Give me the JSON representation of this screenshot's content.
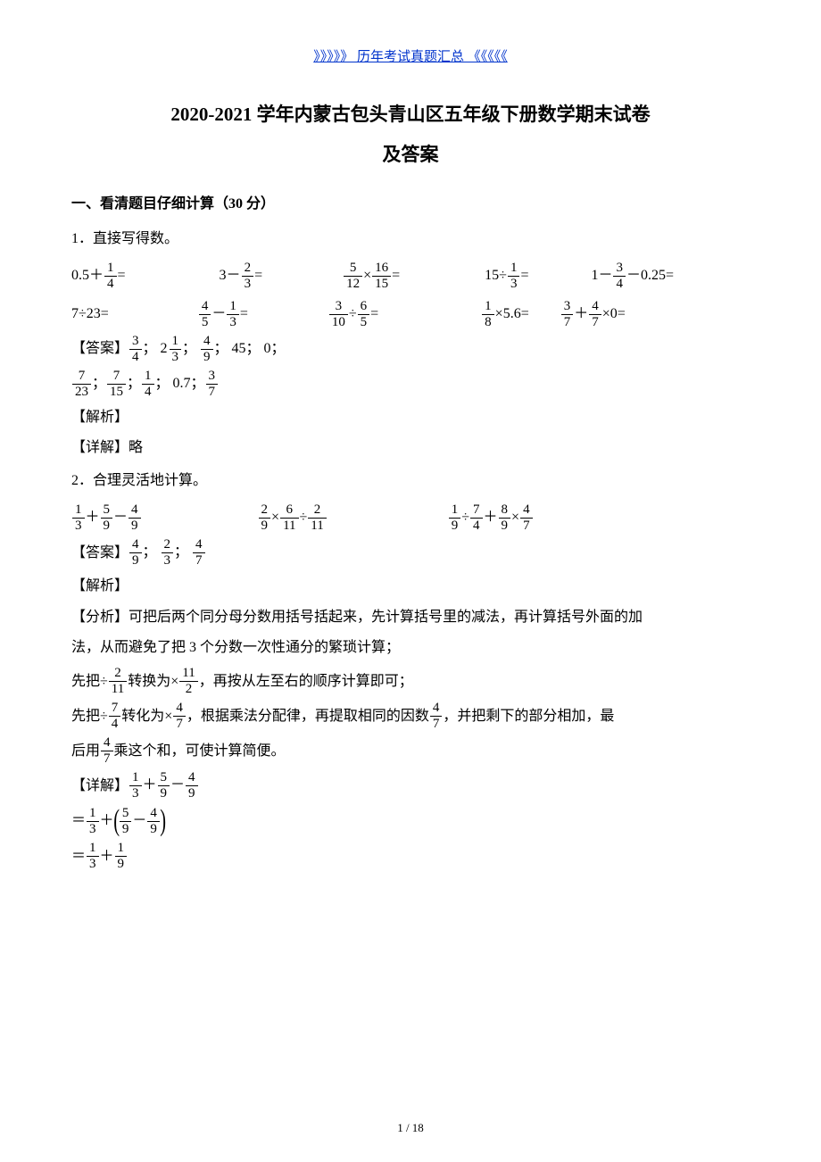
{
  "colors": {
    "link": "#0033cc",
    "text": "#000000",
    "background": "#ffffff"
  },
  "header_link": "》》》》》 历年考试真题汇总 《《《《《",
  "title_line1": "2020-2021 学年内蒙古包头青山区五年级下册数学期末试卷",
  "title_line2": "及答案",
  "section1": "一、看清题目仔细计算（30 分）",
  "q1_label": "1．直接写得数。",
  "q1_row1": {
    "gaps": [
      "0px",
      "105px",
      "90px",
      "95px",
      "70px"
    ],
    "exprs": [
      [
        {
          "t": "txt",
          "v": "0.5＋"
        },
        {
          "t": "frac",
          "n": "1",
          "d": "4"
        },
        {
          "t": "txt",
          "v": "="
        }
      ],
      [
        {
          "t": "txt",
          "v": "3－"
        },
        {
          "t": "frac",
          "n": "2",
          "d": "3"
        },
        {
          "t": "txt",
          "v": "="
        }
      ],
      [
        {
          "t": "frac",
          "n": "5",
          "d": "12"
        },
        {
          "t": "txt",
          "v": "×"
        },
        {
          "t": "frac",
          "n": "16",
          "d": "15"
        },
        {
          "t": "txt",
          "v": "="
        }
      ],
      [
        {
          "t": "txt",
          "v": "15÷"
        },
        {
          "t": "frac",
          "n": "1",
          "d": "3"
        },
        {
          "t": "txt",
          "v": "="
        }
      ],
      [
        {
          "t": "txt",
          "v": "1－"
        },
        {
          "t": "frac",
          "n": "3",
          "d": "4"
        },
        {
          "t": "txt",
          "v": "－0.25="
        }
      ]
    ]
  },
  "q1_row2": {
    "gaps": [
      "0px",
      "100px",
      "90px",
      "115px",
      "35px"
    ],
    "exprs": [
      [
        {
          "t": "txt",
          "v": "7÷23="
        }
      ],
      [
        {
          "t": "frac",
          "n": "4",
          "d": "5"
        },
        {
          "t": "txt",
          "v": "－"
        },
        {
          "t": "frac",
          "n": "1",
          "d": "3"
        },
        {
          "t": "txt",
          "v": "="
        }
      ],
      [
        {
          "t": "frac",
          "n": "3",
          "d": "10"
        },
        {
          "t": "txt",
          "v": "÷"
        },
        {
          "t": "frac",
          "n": "6",
          "d": "5"
        },
        {
          "t": "txt",
          "v": "="
        }
      ],
      [
        {
          "t": "frac",
          "n": "1",
          "d": "8"
        },
        {
          "t": "txt",
          "v": "×5.6="
        }
      ],
      [
        {
          "t": "frac",
          "n": "3",
          "d": "7"
        },
        {
          "t": "txt",
          "v": "＋"
        },
        {
          "t": "frac",
          "n": "4",
          "d": "7"
        },
        {
          "t": "txt",
          "v": "×0="
        }
      ]
    ]
  },
  "q1_ans_label": "【答案】",
  "q1_ans_line1": [
    {
      "t": "frac",
      "n": "3",
      "d": "4"
    },
    {
      "t": "txt",
      "v": "； "
    },
    {
      "t": "mix",
      "w": "2",
      "n": "1",
      "d": "3"
    },
    {
      "t": "txt",
      "v": "； "
    },
    {
      "t": "frac",
      "n": "4",
      "d": "9"
    },
    {
      "t": "txt",
      "v": "； 45； 0；"
    }
  ],
  "q1_ans_line2": [
    {
      "t": "frac",
      "n": "7",
      "d": "23"
    },
    {
      "t": "txt",
      "v": "； "
    },
    {
      "t": "frac",
      "n": "7",
      "d": "15"
    },
    {
      "t": "txt",
      "v": "； "
    },
    {
      "t": "frac",
      "n": "1",
      "d": "4"
    },
    {
      "t": "txt",
      "v": "； 0.7； "
    },
    {
      "t": "frac",
      "n": "3",
      "d": "7"
    }
  ],
  "jiexi_label": "【解析】",
  "detail_label": "【详解】",
  "q1_detail_text": "略",
  "q2_label": "2．合理灵活地计算。",
  "q2_row": {
    "gaps": [
      "0px",
      "130px",
      "135px"
    ],
    "exprs": [
      [
        {
          "t": "frac",
          "n": "1",
          "d": "3"
        },
        {
          "t": "txt",
          "v": "＋"
        },
        {
          "t": "frac",
          "n": "5",
          "d": "9"
        },
        {
          "t": "txt",
          "v": "－"
        },
        {
          "t": "frac",
          "n": "4",
          "d": "9"
        }
      ],
      [
        {
          "t": "frac",
          "n": "2",
          "d": "9"
        },
        {
          "t": "txt",
          "v": "×"
        },
        {
          "t": "frac",
          "n": "6",
          "d": "11"
        },
        {
          "t": "txt",
          "v": "÷"
        },
        {
          "t": "frac",
          "n": "2",
          "d": "11"
        }
      ],
      [
        {
          "t": "frac",
          "n": "1",
          "d": "9"
        },
        {
          "t": "txt",
          "v": "÷"
        },
        {
          "t": "frac",
          "n": "7",
          "d": "4"
        },
        {
          "t": "txt",
          "v": "＋"
        },
        {
          "t": "frac",
          "n": "8",
          "d": "9"
        },
        {
          "t": "txt",
          "v": "×"
        },
        {
          "t": "frac",
          "n": "4",
          "d": "7"
        }
      ]
    ]
  },
  "q2_ans": [
    {
      "t": "frac",
      "n": "4",
      "d": "9"
    },
    {
      "t": "txt",
      "v": "； "
    },
    {
      "t": "frac",
      "n": "2",
      "d": "3"
    },
    {
      "t": "txt",
      "v": "； "
    },
    {
      "t": "frac",
      "n": "4",
      "d": "7"
    }
  ],
  "fenxi_label": "【分析】",
  "fenxi_line1": "可把后两个同分母分数用括号括起来，先计算括号里的减法，再计算括号外面的加",
  "fenxi_line2": "法，从而避免了把 3 个分数一次性通分的繁琐计算；",
  "fenxi_line3_pre": "先把÷",
  "fenxi_line3_mid": "转换为×",
  "fenxi_line3_post": "，再按从左至右的顺序计算即可；",
  "fenxi_line3_f1": {
    "n": "2",
    "d": "11"
  },
  "fenxi_line3_f2": {
    "n": "11",
    "d": "2"
  },
  "fenxi_line4_pre": "先把÷",
  "fenxi_line4_mid1": "转化为×",
  "fenxi_line4_mid2": "，根据乘法分配律，再提取相同的因数",
  "fenxi_line4_post": "，并把剩下的部分相加，最",
  "fenxi_line4_f1": {
    "n": "7",
    "d": "4"
  },
  "fenxi_line4_f2": {
    "n": "4",
    "d": "7"
  },
  "fenxi_line4_f3": {
    "n": "4",
    "d": "7"
  },
  "fenxi_line5_pre": "后用",
  "fenxi_line5_post": "乘这个和，可使计算简便。",
  "fenxi_line5_f": {
    "n": "4",
    "d": "7"
  },
  "detail_eq1": [
    {
      "t": "frac",
      "n": "1",
      "d": "3"
    },
    {
      "t": "txt",
      "v": "＋"
    },
    {
      "t": "frac",
      "n": "5",
      "d": "9"
    },
    {
      "t": "txt",
      "v": "－"
    },
    {
      "t": "frac",
      "n": "4",
      "d": "9"
    }
  ],
  "detail_eq2": [
    {
      "t": "txt",
      "v": "＝"
    },
    {
      "t": "frac",
      "n": "1",
      "d": "3"
    },
    {
      "t": "txt",
      "v": "＋"
    },
    {
      "t": "lparen",
      "v": "("
    },
    {
      "t": "frac",
      "n": "5",
      "d": "9"
    },
    {
      "t": "txt",
      "v": "－"
    },
    {
      "t": "frac",
      "n": "4",
      "d": "9"
    },
    {
      "t": "lparen",
      "v": ")"
    }
  ],
  "detail_eq3": [
    {
      "t": "txt",
      "v": "＝"
    },
    {
      "t": "frac",
      "n": "1",
      "d": "3"
    },
    {
      "t": "txt",
      "v": "＋"
    },
    {
      "t": "frac",
      "n": "1",
      "d": "9"
    }
  ],
  "footer": "1 / 18"
}
